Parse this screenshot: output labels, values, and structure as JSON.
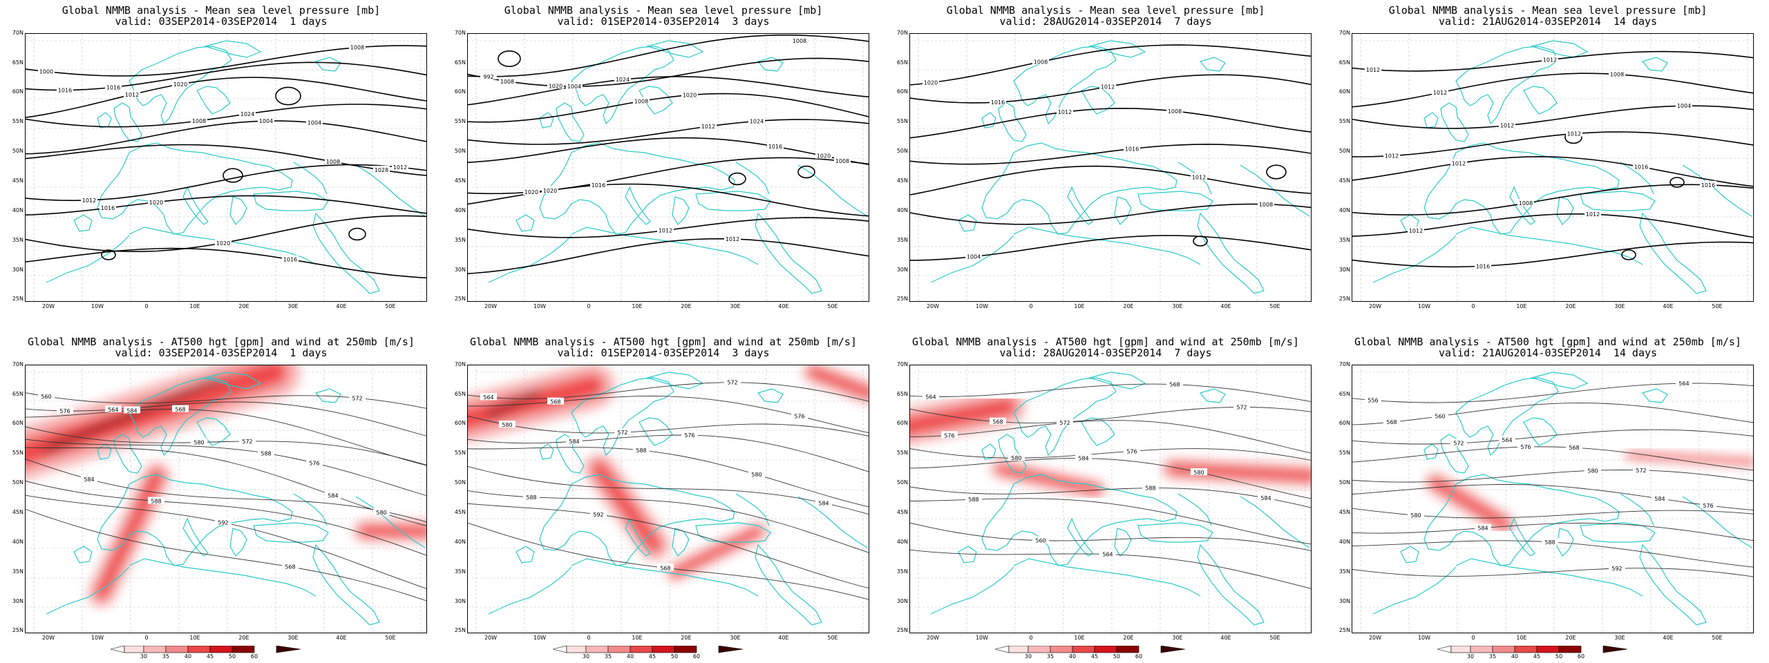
{
  "colors": {
    "coast": "#2cc9c9",
    "contour": "#000000",
    "wind": "#e8001a",
    "grid": "#bdbdbd"
  },
  "axes": {
    "lat_labels": [
      "70N",
      "65N",
      "60N",
      "55N",
      "50N",
      "45N",
      "40N",
      "35N",
      "30N",
      "25N"
    ],
    "lon_labels": [
      "20W",
      "10W",
      "0",
      "10E",
      "20E",
      "30E",
      "40E",
      "50E"
    ]
  },
  "top": [
    {
      "title": "Global NMMB analysis - Mean sea level pressure [mb]",
      "valid": "valid: 03SEP2014-03SEP2014  1 days",
      "labels": [
        "1000",
        "1016",
        "1020",
        "1024",
        "1004",
        "1028",
        "1012",
        "1020",
        "1020",
        "1016",
        "1008",
        "1016",
        "1012",
        "1008",
        "1004",
        "1008",
        "1012",
        "1016"
      ]
    },
    {
      "title": "Global NMMB analysis - Mean sea level pressure [mb]",
      "valid": "valid: 01SEP2014-03SEP2014  3 days",
      "labels": [
        "992",
        "1020",
        "1024",
        "1020",
        "1024",
        "1020",
        "1020",
        "1016",
        "1012",
        "1012",
        "1008",
        "1008",
        "1004",
        "1008",
        "1012",
        "1016",
        "1008",
        "1020"
      ]
    },
    {
      "title": "Global NMMB analysis - Mean sea level pressure [mb]",
      "valid": "valid: 28AUG2014-03SEP2014  7 days",
      "labels": [
        "1020",
        "1016",
        "1012",
        "1016",
        "1012",
        "1008",
        "1004",
        "1008",
        "1012",
        "1008"
      ]
    },
    {
      "title": "Global NMMB analysis - Mean sea level pressure [mb]",
      "valid": "valid: 21AUG2014-03SEP2014  14 days",
      "labels": [
        "1012",
        "1012",
        "1012",
        "1012",
        "1016",
        "1016",
        "1012",
        "1016",
        "1012",
        "1008",
        "1004",
        "1012",
        "1012",
        "1008",
        "1012"
      ]
    }
  ],
  "bottom": [
    {
      "title": "Global NMMB analysis - AT500 hgt [gpm] and wind at 250mb [m/s]",
      "valid": "valid: 03SEP2014-03SEP2014  1 days",
      "labels": [
        "560",
        "564",
        "568",
        "572",
        "576",
        "580",
        "584",
        "588",
        "592",
        "568",
        "572",
        "576",
        "584",
        "580",
        "588",
        "584"
      ]
    },
    {
      "title": "Global NMMB analysis - AT500 hgt [gpm] and wind at 250mb [m/s]",
      "valid": "valid: 01SEP2014-03SEP2014  3 days",
      "labels": [
        "564",
        "568",
        "572",
        "576",
        "580",
        "584",
        "588",
        "592",
        "568",
        "572",
        "576",
        "580",
        "584",
        "588"
      ]
    },
    {
      "title": "Global NMMB analysis - AT500 hgt [gpm] and wind at 250mb [m/s]",
      "valid": "valid: 28AUG2014-03SEP2014  7 days",
      "labels": [
        "564",
        "568",
        "572",
        "576",
        "580",
        "584",
        "588",
        "560",
        "564",
        "568",
        "572",
        "576",
        "580",
        "584",
        "588"
      ]
    },
    {
      "title": "Global NMMB analysis - AT500 hgt [gpm] and wind at 250mb [m/s]",
      "valid": "valid: 21AUG2014-03SEP2014  14 days",
      "labels": [
        "556",
        "560",
        "564",
        "568",
        "572",
        "576",
        "580",
        "584",
        "588",
        "592",
        "564",
        "568",
        "572",
        "576",
        "580",
        "584"
      ]
    }
  ],
  "colorbar": {
    "ticks": [
      "30",
      "35",
      "40",
      "45",
      "50",
      "60"
    ]
  }
}
